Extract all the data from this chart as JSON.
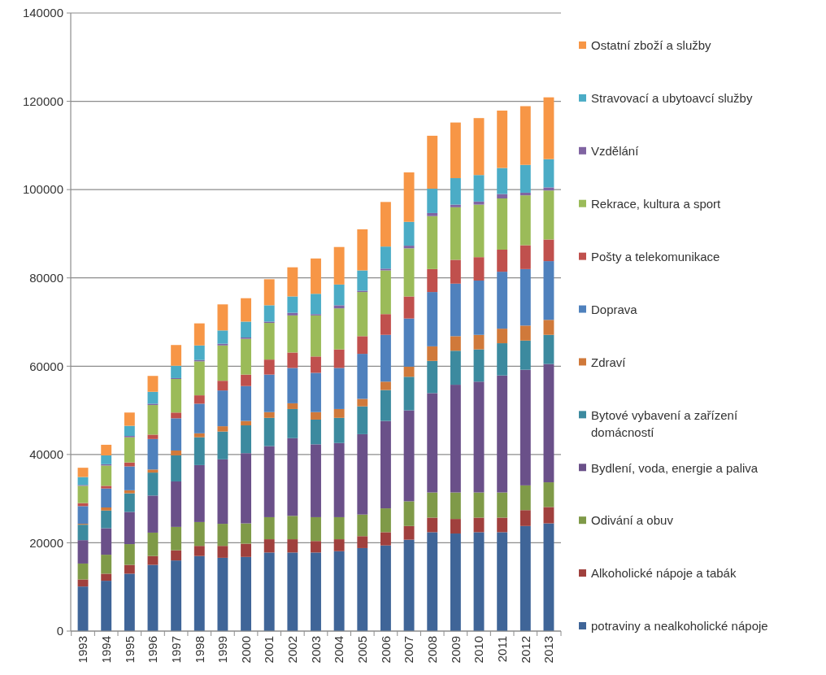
{
  "chart_data": {
    "type": "bar",
    "stacked": true,
    "categories": [
      "1993",
      "1994",
      "1995",
      "1996",
      "1997",
      "1998",
      "1999",
      "2000",
      "2001",
      "2002",
      "2003",
      "2004",
      "2005",
      "2006",
      "2007",
      "2008",
      "2009",
      "2010",
      "2011",
      "2012",
      "2013"
    ],
    "ylim": [
      0,
      140000
    ],
    "yticks": [
      0,
      20000,
      40000,
      60000,
      80000,
      100000,
      120000,
      140000
    ],
    "grid": "y",
    "legend": "right",
    "series": [
      {
        "name": "potraviny a nealkoholické nápoje",
        "color": "#3f6598",
        "values": [
          10100,
          11400,
          13000,
          15000,
          16000,
          17000,
          16600,
          16800,
          17800,
          17800,
          17800,
          18100,
          18800,
          19400,
          20700,
          22400,
          22100,
          22400,
          22400,
          23800,
          24400
        ]
      },
      {
        "name": "Alkoholické nápoje a tabák",
        "color": "#a0403d",
        "values": [
          1600,
          1600,
          2000,
          2000,
          2300,
          2300,
          2700,
          3000,
          3000,
          3000,
          2600,
          2700,
          2700,
          3000,
          3100,
          3300,
          3300,
          3300,
          3300,
          3600,
          3700
        ]
      },
      {
        "name": "Odivání a obuv",
        "color": "#7f9a48",
        "values": [
          3600,
          4300,
          4700,
          5300,
          5300,
          5400,
          5000,
          4600,
          5000,
          5300,
          5400,
          5000,
          4900,
          5400,
          5600,
          5700,
          6000,
          5700,
          5700,
          5600,
          5600
        ]
      },
      {
        "name": "Bydlení, voda, energie a paliva",
        "color": "#6a5089",
        "values": [
          5300,
          6000,
          7300,
          8400,
          10300,
          12900,
          14600,
          15900,
          16100,
          17600,
          16500,
          16800,
          18200,
          19800,
          20600,
          22500,
          24400,
          25100,
          26500,
          26200,
          26800
        ]
      },
      {
        "name": "Bytové vybavení a zařízení domácností",
        "color": "#3c8a9f",
        "values": [
          3500,
          4000,
          4200,
          5200,
          5900,
          6300,
          6300,
          6300,
          6400,
          6600,
          5600,
          5700,
          6300,
          7000,
          7600,
          7300,
          7700,
          7300,
          7300,
          6600,
          6600
        ]
      },
      {
        "name": "Zdraví",
        "color": "#d0793a",
        "values": [
          200,
          700,
          700,
          700,
          1100,
          900,
          1200,
          1000,
          1300,
          1300,
          1700,
          2000,
          1700,
          1900,
          2300,
          3300,
          3300,
          3300,
          3300,
          3400,
          3400
        ]
      },
      {
        "name": "Doprava",
        "color": "#4f81bd",
        "values": [
          4000,
          4300,
          5400,
          6900,
          7300,
          6700,
          8100,
          7900,
          8500,
          8000,
          8900,
          9300,
          10200,
          10600,
          10900,
          12300,
          11900,
          12300,
          12900,
          12800,
          13300
        ]
      },
      {
        "name": "Pošty a telekomunikace",
        "color": "#c0504d",
        "values": [
          700,
          600,
          900,
          1000,
          1300,
          1900,
          2200,
          2600,
          3400,
          3500,
          3700,
          4200,
          4000,
          4700,
          5000,
          5200,
          5400,
          5300,
          5000,
          5400,
          4900
        ]
      },
      {
        "name": "Rekrace, kultura a sport",
        "color": "#9bbb59",
        "values": [
          3900,
          4600,
          5700,
          6700,
          7600,
          7700,
          8000,
          8100,
          8300,
          8400,
          9300,
          9300,
          10000,
          9900,
          10900,
          12000,
          11900,
          11900,
          11600,
          11300,
          11100
        ]
      },
      {
        "name": "Vzdělání",
        "color": "#8064a2",
        "values": [
          200,
          300,
          300,
          300,
          200,
          300,
          400,
          300,
          300,
          600,
          300,
          700,
          300,
          400,
          600,
          700,
          600,
          700,
          1000,
          600,
          700
        ]
      },
      {
        "name": "Stravovací a ubytoavcí služby",
        "color": "#4bacc6",
        "values": [
          1800,
          2000,
          2300,
          2700,
          2800,
          3300,
          3000,
          3600,
          3700,
          3700,
          4600,
          4700,
          4600,
          5000,
          5400,
          5500,
          6000,
          6000,
          5900,
          6300,
          6400
        ]
      },
      {
        "name": "Ostatní zboží a služby",
        "color": "#f79646",
        "values": [
          2100,
          2400,
          3000,
          3600,
          4700,
          5000,
          5900,
          5300,
          5900,
          6600,
          8000,
          8500,
          9300,
          10100,
          11200,
          12000,
          12600,
          12900,
          13000,
          13300,
          14000
        ]
      }
    ]
  }
}
